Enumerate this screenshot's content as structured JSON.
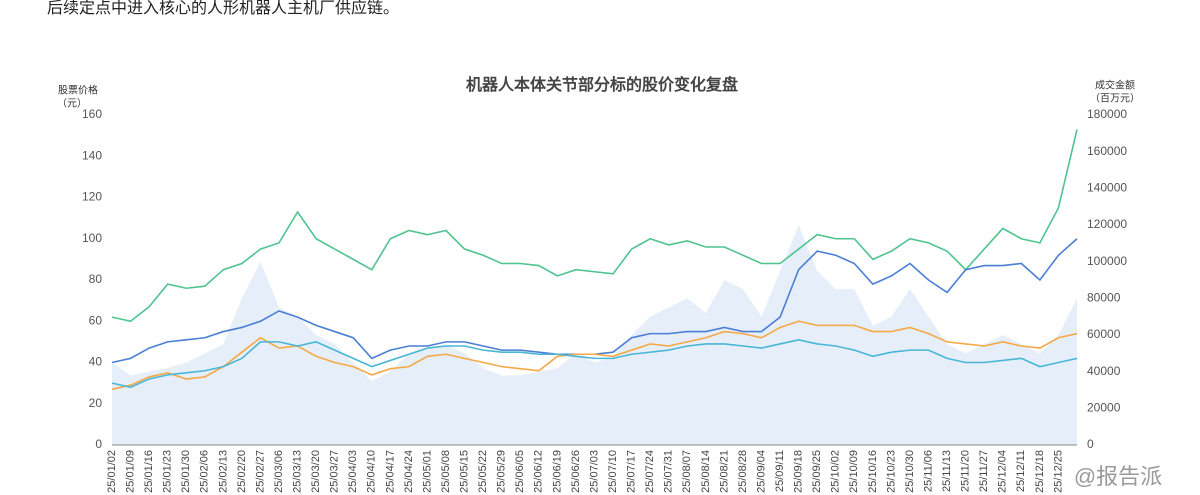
{
  "intro": "后续定点中进入核心的人形机器人主机厂供应链。",
  "watermark": "@报告派",
  "chart_data": {
    "type": "line",
    "title": "机器人本体关节部分标的股价变化复盘",
    "y_label": [
      "股票价格",
      "（元）"
    ],
    "y2_label": [
      "成交金额",
      "（百万元）"
    ],
    "categories": [
      "25/01/02",
      "25/01/09",
      "25/01/16",
      "25/01/23",
      "25/01/30",
      "25/02/06",
      "25/02/13",
      "25/02/20",
      "25/02/27",
      "25/03/06",
      "25/03/13",
      "25/03/20",
      "25/03/27",
      "25/04/03",
      "25/04/10",
      "25/04/17",
      "25/04/24",
      "25/05/01",
      "25/05/08",
      "25/05/15",
      "25/05/22",
      "25/05/29",
      "25/06/05",
      "25/06/12",
      "25/06/19",
      "25/06/26",
      "25/07/03",
      "25/07/10",
      "25/07/17",
      "25/07/24",
      "25/07/31",
      "25/08/07",
      "25/08/14",
      "25/08/21",
      "25/08/28",
      "25/09/04",
      "25/09/11",
      "25/09/18",
      "25/09/25",
      "25/10/02",
      "25/10/09",
      "25/10/16",
      "25/10/23",
      "25/10/30",
      "25/11/06",
      "25/11/13",
      "25/11/20",
      "25/11/27",
      "25/12/04",
      "25/12/11",
      "25/12/18",
      "25/12/25",
      null
    ],
    "ylim": [
      0,
      160
    ],
    "yticks": [
      0,
      20,
      40,
      60,
      80,
      100,
      120,
      140,
      160
    ],
    "y2lim": [
      0,
      180000
    ],
    "y2ticks": [
      0,
      20000,
      40000,
      60000,
      80000,
      100000,
      120000,
      140000,
      160000,
      180000
    ],
    "series": [
      {
        "color": "#e6eff9",
        "axis": "y2",
        "kind": "area",
        "values": [
          45000,
          38000,
          40000,
          42000,
          45000,
          50000,
          55000,
          80000,
          100000,
          75000,
          70000,
          60000,
          55000,
          45000,
          35000,
          40000,
          50000,
          52000,
          55000,
          50000,
          42000,
          38000,
          38000,
          40000,
          42000,
          50000,
          45000,
          48000,
          60000,
          70000,
          75000,
          80000,
          72000,
          90000,
          85000,
          70000,
          95000,
          120000,
          95000,
          85000,
          85000,
          65000,
          70000,
          85000,
          70000,
          55000,
          50000,
          55000,
          60000,
          55000,
          50000,
          60000,
          80000
        ]
      },
      {
        "color": "#4fc48e",
        "values": [
          62,
          60,
          67,
          78,
          76,
          77,
          85,
          88,
          95,
          98,
          113,
          100,
          95,
          90,
          85,
          100,
          104,
          102,
          104,
          95,
          92,
          88,
          88,
          87,
          82,
          85,
          84,
          83,
          95,
          100,
          97,
          99,
          96,
          96,
          92,
          88,
          88,
          95,
          102,
          100,
          100,
          90,
          94,
          100,
          98,
          94,
          85,
          95,
          105,
          100,
          98,
          115,
          153
        ]
      },
      {
        "color": "#4a7fd6",
        "values": [
          40,
          42,
          47,
          50,
          51,
          52,
          55,
          57,
          60,
          65,
          62,
          58,
          55,
          52,
          42,
          46,
          48,
          48,
          50,
          50,
          48,
          46,
          46,
          45,
          44,
          44,
          44,
          45,
          52,
          54,
          54,
          55,
          55,
          57,
          55,
          55,
          62,
          85,
          94,
          92,
          88,
          78,
          82,
          88,
          80,
          74,
          85,
          87,
          87,
          88,
          80,
          92,
          100
        ]
      },
      {
        "color": "#f5a845",
        "values": [
          27,
          29,
          33,
          35,
          32,
          33,
          38,
          45,
          52,
          47,
          48,
          43,
          40,
          38,
          34,
          37,
          38,
          43,
          44,
          42,
          40,
          38,
          37,
          36,
          43,
          44,
          44,
          43,
          46,
          49,
          48,
          50,
          52,
          55,
          54,
          52,
          57,
          60,
          58,
          58,
          58,
          55,
          55,
          57,
          54,
          50,
          49,
          48,
          50,
          48,
          47,
          52,
          54
        ]
      },
      {
        "color": "#48b6d6",
        "values": [
          30,
          28,
          32,
          34,
          35,
          36,
          38,
          42,
          50,
          50,
          48,
          50,
          46,
          42,
          38,
          41,
          44,
          47,
          48,
          48,
          46,
          45,
          45,
          44,
          44,
          43,
          42,
          42,
          44,
          45,
          46,
          48,
          49,
          49,
          48,
          47,
          49,
          51,
          49,
          48,
          46,
          43,
          45,
          46,
          46,
          42,
          40,
          40,
          41,
          42,
          38,
          40,
          42
        ]
      }
    ]
  }
}
